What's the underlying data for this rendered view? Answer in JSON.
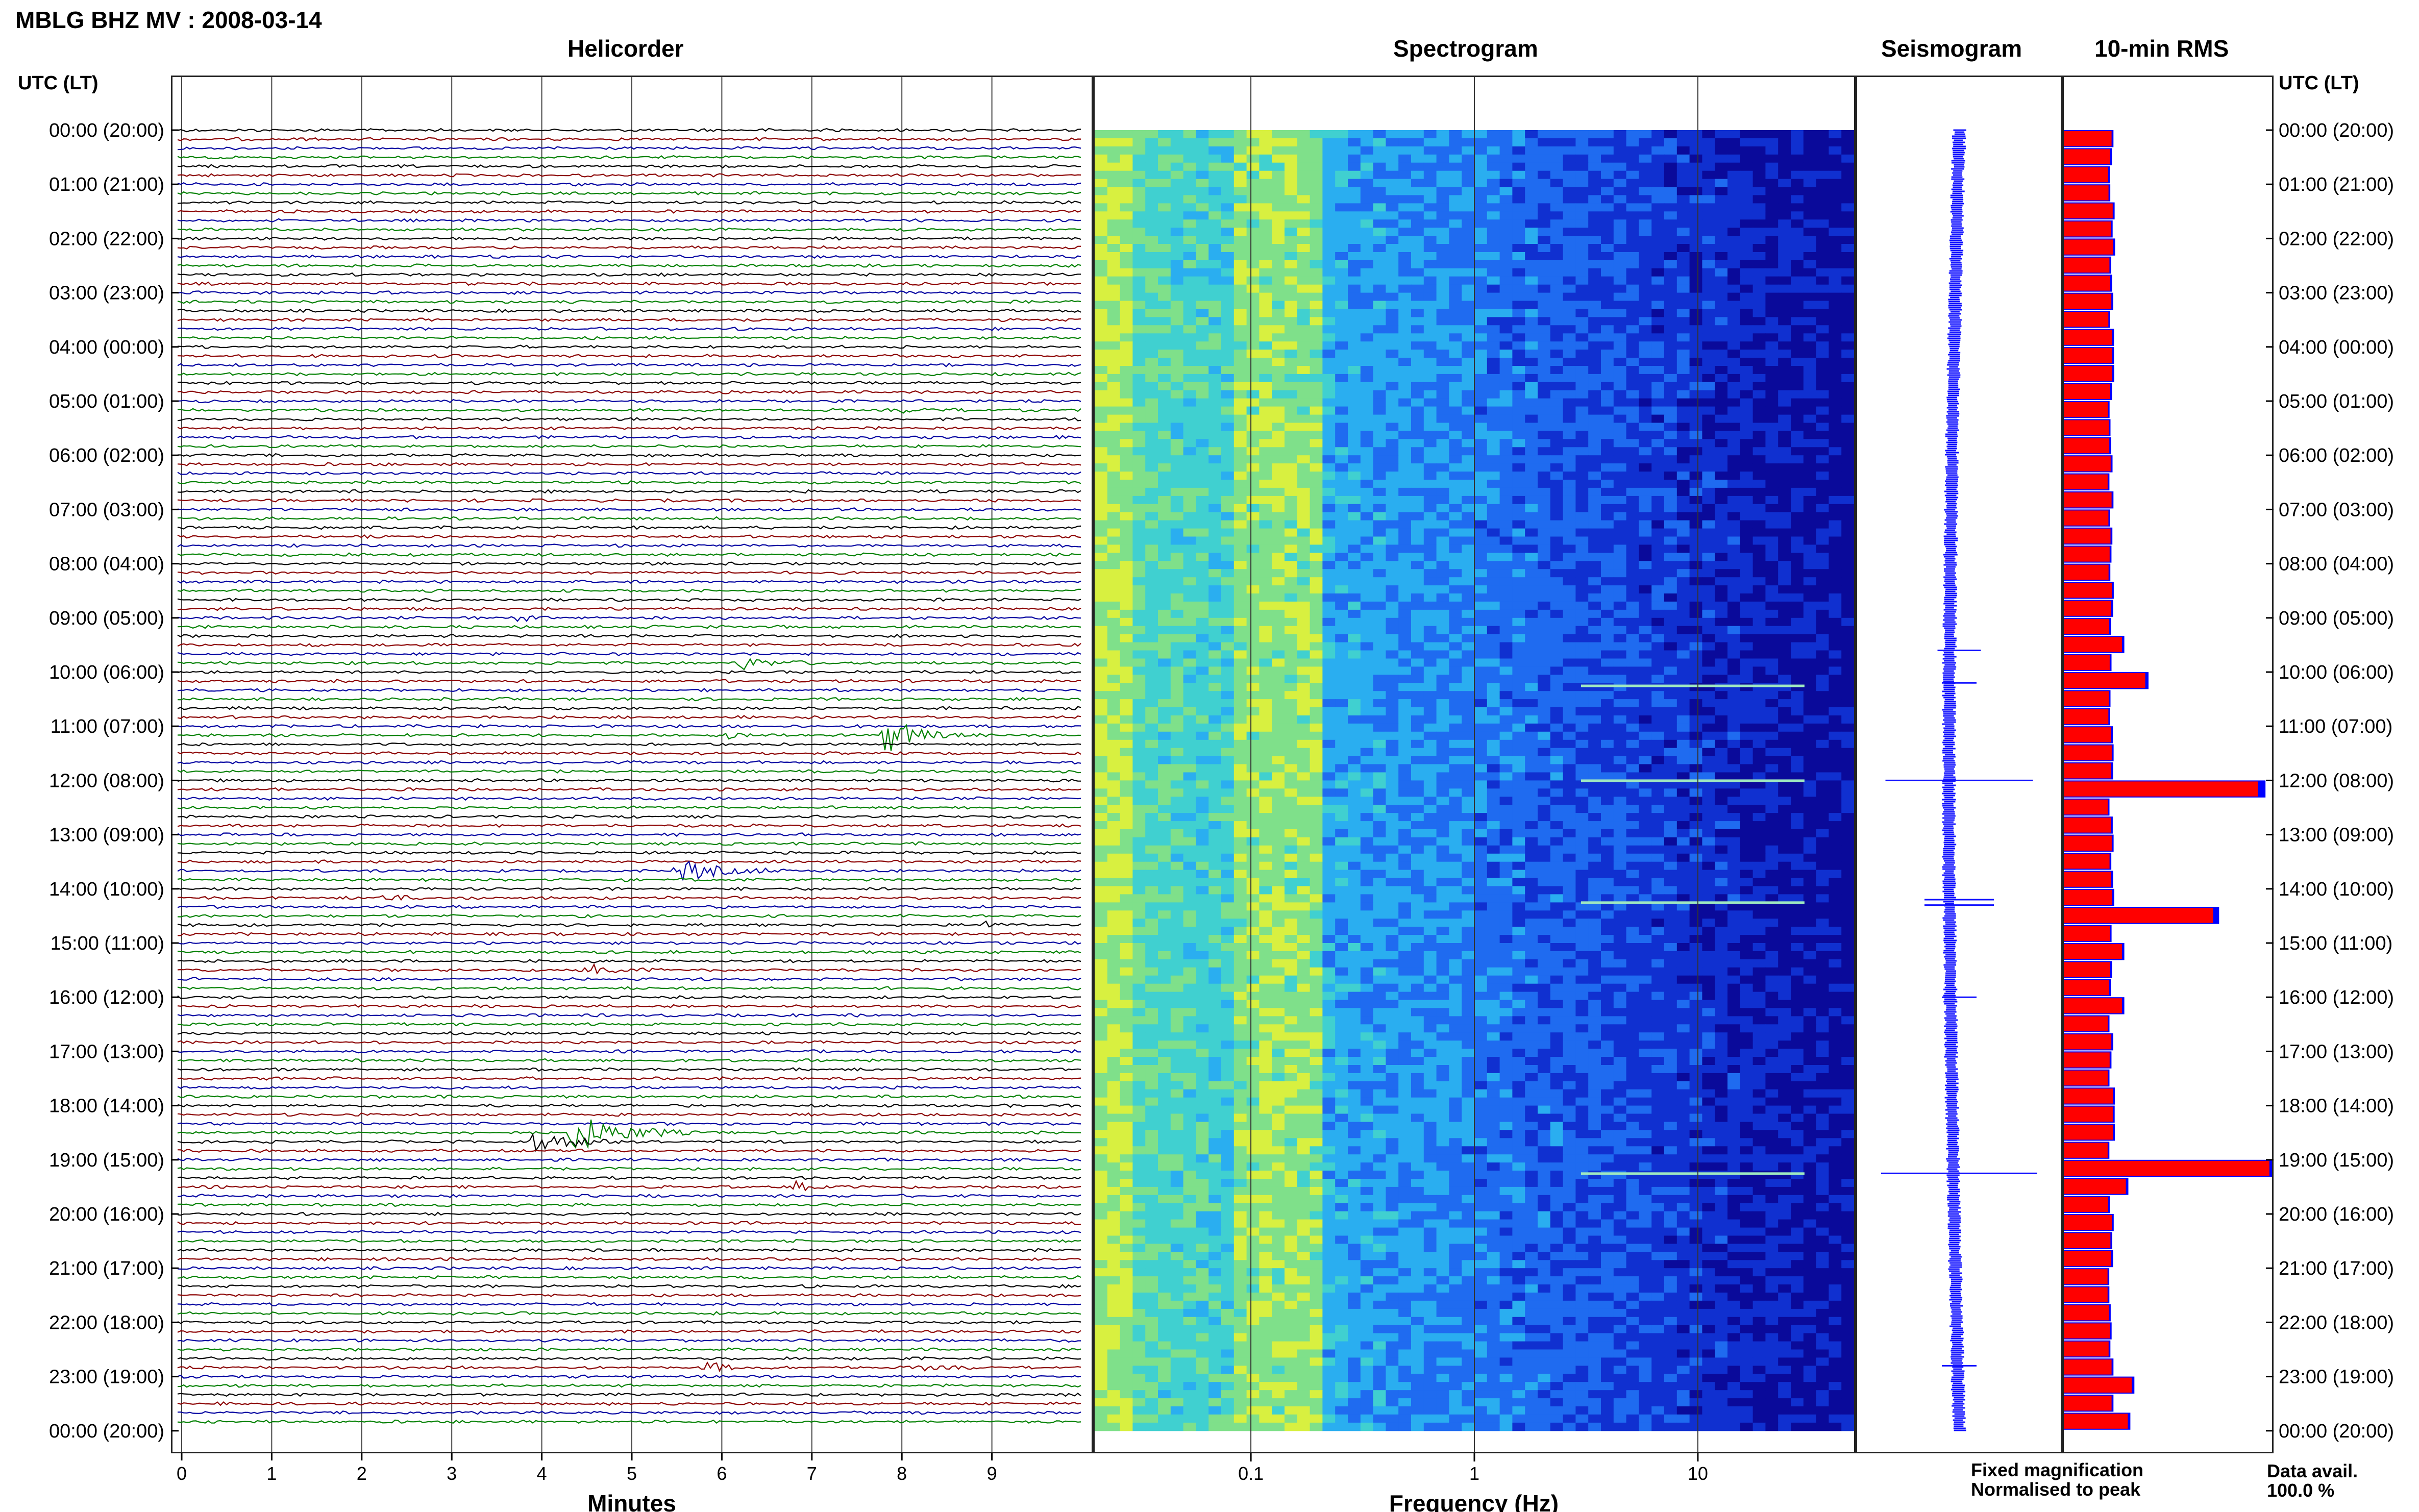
{
  "header": {
    "station_title": "MBLG BHZ MV : 2008-03-14",
    "helicorder_title": "Helicorder",
    "spectrogram_title": "Spectrogram",
    "seismogram_title": "Seismogram",
    "rms_title": "10-min RMS",
    "utc_label_left": "UTC (LT)",
    "utc_label_right": "UTC (LT)"
  },
  "legend": {
    "fixed": "Fixed magnification",
    "normalised": "Normalised to peak",
    "fixed_color": "#0000ff",
    "normalised_color": "#ff0000"
  },
  "availability": {
    "label": "Data avail.",
    "value": "100.0 %"
  },
  "chart_data": [
    {
      "type": "helicorder",
      "title": "Helicorder",
      "xlabel": "Minutes",
      "x_ticks": [
        "0",
        "1",
        "2",
        "3",
        "4",
        "5",
        "6",
        "7",
        "8",
        "9"
      ],
      "xlim": [
        0,
        10
      ],
      "y_ticks": [
        "00:00 (20:00)",
        "01:00 (21:00)",
        "02:00 (22:00)",
        "03:00 (23:00)",
        "04:00 (00:00)",
        "05:00 (01:00)",
        "06:00 (02:00)",
        "07:00 (03:00)",
        "08:00 (04:00)",
        "09:00 (05:00)",
        "10:00 (06:00)",
        "11:00 (07:00)",
        "12:00 (08:00)",
        "13:00 (09:00)",
        "14:00 (10:00)",
        "15:00 (11:00)",
        "16:00 (12:00)",
        "17:00 (13:00)",
        "18:00 (14:00)",
        "19:00 (15:00)",
        "20:00 (16:00)",
        "21:00 (17:00)",
        "22:00 (18:00)",
        "23:00 (19:00)",
        "00:00 (20:00)"
      ],
      "trace_colors": [
        "#000000",
        "#8b0000",
        "#0000a0",
        "#008000"
      ],
      "rows_per_hour": 6,
      "events": [
        {
          "row": 21,
          "minute": 6.1,
          "dur": 0.4,
          "amp": 0.25
        },
        {
          "row": 31,
          "minute": 8.0,
          "dur": 1.2,
          "amp": 0.2
        },
        {
          "row": 54,
          "minute": 3.7,
          "dur": 0.4,
          "amp": 0.6
        },
        {
          "row": 59,
          "minute": 6.2,
          "dur": 1.0,
          "amp": 0.7
        },
        {
          "row": 67,
          "minute": 6.0,
          "dur": 0.8,
          "amp": 0.3
        },
        {
          "row": 67,
          "minute": 7.8,
          "dur": 0.9,
          "amp": 2.3
        },
        {
          "row": 82,
          "minute": 5.5,
          "dur": 1.3,
          "amp": 1.2
        },
        {
          "row": 85,
          "minute": 2.2,
          "dur": 0.5,
          "amp": 0.5
        },
        {
          "row": 88,
          "minute": 8.9,
          "dur": 0.3,
          "amp": 0.7
        },
        {
          "row": 93,
          "minute": 4.5,
          "dur": 0.9,
          "amp": 0.6
        },
        {
          "row": 111,
          "minute": 4.3,
          "dur": 1.5,
          "amp": 2.2
        },
        {
          "row": 112,
          "minute": 3.9,
          "dur": 1.5,
          "amp": 0.9
        },
        {
          "row": 117,
          "minute": 6.8,
          "dur": 0.5,
          "amp": 0.6
        },
        {
          "row": 137,
          "minute": 5.8,
          "dur": 0.7,
          "amp": 0.6
        },
        {
          "row": 137,
          "minute": 8.2,
          "dur": 0.8,
          "amp": 0.3
        }
      ]
    },
    {
      "type": "heatmap",
      "title": "Spectrogram",
      "xlabel": "Frequency (Hz)",
      "x_scale": "log",
      "xlim": [
        0.02,
        50
      ],
      "x_ticks": [
        "0.1",
        "1",
        "10"
      ],
      "colormap": [
        "#0a0a9a",
        "#1030d0",
        "#1f6bf0",
        "#2aaef0",
        "#40d0d0",
        "#7fe08a",
        "#d8f040",
        "#f8e020"
      ]
    },
    {
      "type": "line",
      "title": "Seismogram",
      "color": "#1010ff",
      "spikes": [
        {
          "hour": 9.6,
          "amp": 0.25
        },
        {
          "hour": 10.2,
          "amp": 0.2
        },
        {
          "hour": 12.0,
          "amp": 0.85
        },
        {
          "hour": 14.2,
          "amp": 0.4
        },
        {
          "hour": 14.3,
          "amp": 0.4
        },
        {
          "hour": 16.0,
          "amp": 0.2
        },
        {
          "hour": 19.25,
          "amp": 0.9
        },
        {
          "hour": 22.8,
          "amp": 0.2
        }
      ]
    },
    {
      "type": "bar",
      "title": "10-min RMS",
      "series": [
        {
          "name": "Fixed magnification",
          "color": "#0000ff"
        },
        {
          "name": "Normalised to peak",
          "color": "#ff0000"
        }
      ],
      "peaks": [
        {
          "row": 57,
          "value": 0.3
        },
        {
          "row": 60,
          "value": 0.42
        },
        {
          "row": 72,
          "value": 1.0
        },
        {
          "row": 86,
          "value": 0.77
        },
        {
          "row": 90,
          "value": 0.3
        },
        {
          "row": 96,
          "value": 0.3
        },
        {
          "row": 114,
          "value": 1.06
        },
        {
          "row": 117,
          "value": 0.32
        },
        {
          "row": 138,
          "value": 0.35
        },
        {
          "row": 143,
          "value": 0.33
        }
      ],
      "baseline": 0.24
    }
  ]
}
